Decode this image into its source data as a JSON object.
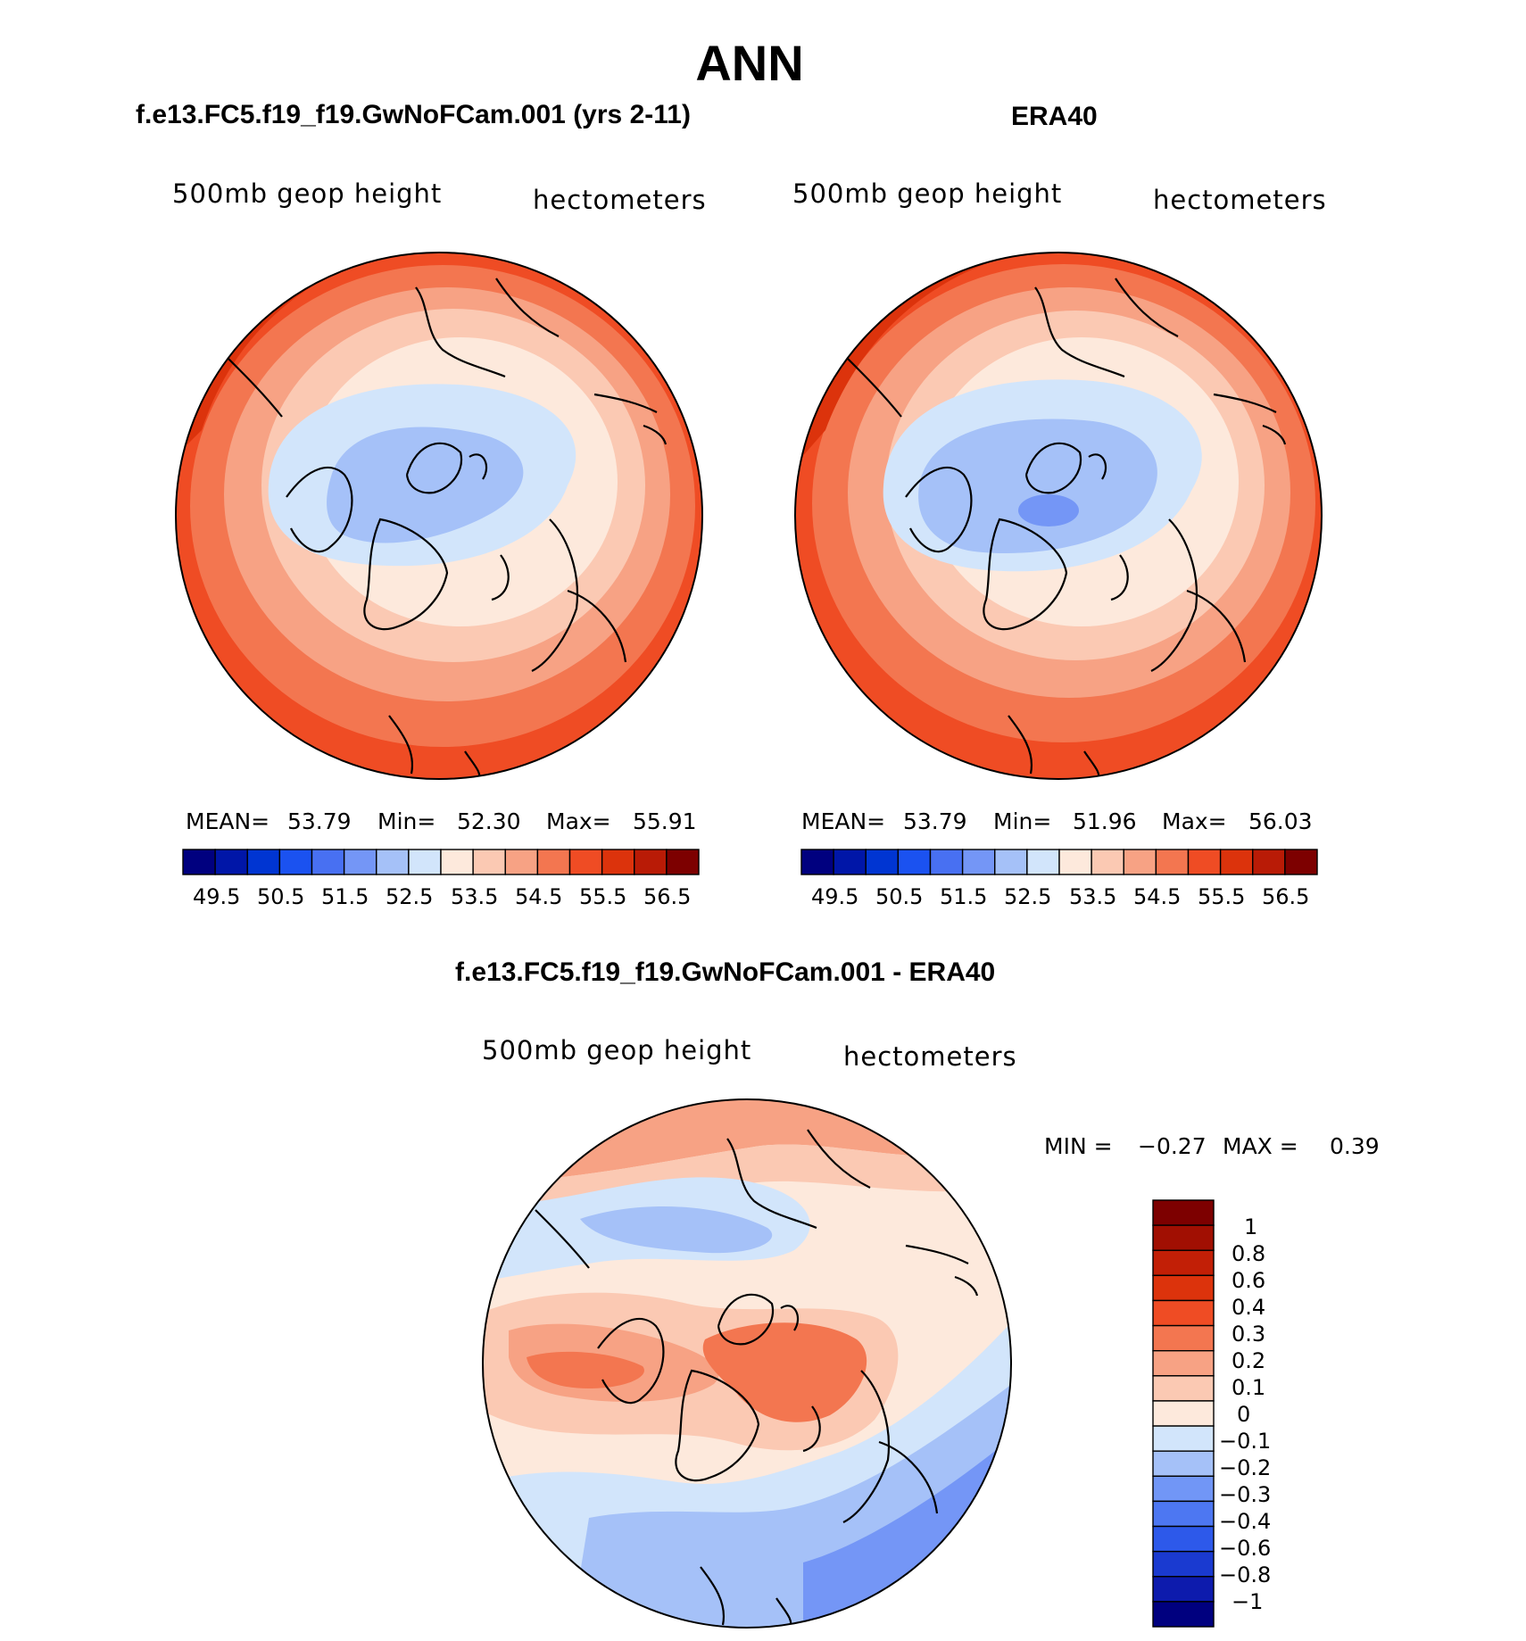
{
  "title": "ANN",
  "colors": {
    "scale16": [
      "#00007f",
      "#0016a8",
      "#0035d2",
      "#1b52f0",
      "#4870f2",
      "#7496f6",
      "#a5c1f8",
      "#d2e5fb",
      "#fde9dc",
      "#fbc9b3",
      "#f7a284",
      "#f37650",
      "#ef4c24",
      "#dc330c",
      "#b91b06",
      "#7d0000"
    ],
    "scale17": [
      "#00007f",
      "#0d1bad",
      "#1a3ad0",
      "#2d59ea",
      "#4d77f2",
      "#7196f6",
      "#a5c1f8",
      "#d2e5fb",
      "#fde9dc",
      "#fbc9b3",
      "#f7a284",
      "#f37650",
      "#ef4c24",
      "#dc330c",
      "#c21f06",
      "#a10f02",
      "#7d0000"
    ]
  },
  "chart_data": [
    {
      "type": "heatmap",
      "projection": "north-polar-stereographic",
      "title": "f.e13.FC5.f19_f19.GwNoFCam.001 (yrs 2-11)",
      "variable": "500mb geop height",
      "units": "hectometers",
      "stats": {
        "mean_label": "MEAN=",
        "mean": "53.79",
        "min_label": "Min=",
        "min": "52.30",
        "max_label": "Max=",
        "max": "55.91"
      },
      "colorbar_ticks": [
        "49.5",
        "50.5",
        "51.5",
        "52.5",
        "53.5",
        "54.5",
        "55.5",
        "56.5"
      ],
      "contour_levels": [
        49.5,
        50,
        50.5,
        51,
        51.5,
        52,
        52.5,
        53,
        53.5,
        54,
        54.5,
        55,
        55.5,
        56,
        56.5
      ],
      "field_range": [
        52.3,
        55.91
      ]
    },
    {
      "type": "heatmap",
      "projection": "north-polar-stereographic",
      "title": "ERA40",
      "variable": "500mb geop height",
      "units": "hectometers",
      "stats": {
        "mean_label": "MEAN=",
        "mean": "53.79",
        "min_label": "Min=",
        "min": "51.96",
        "max_label": "Max=",
        "max": "56.03"
      },
      "colorbar_ticks": [
        "49.5",
        "50.5",
        "51.5",
        "52.5",
        "53.5",
        "54.5",
        "55.5",
        "56.5"
      ],
      "contour_levels": [
        49.5,
        50,
        50.5,
        51,
        51.5,
        52,
        52.5,
        53,
        53.5,
        54,
        54.5,
        55,
        55.5,
        56,
        56.5
      ],
      "field_range": [
        51.96,
        56.03
      ]
    },
    {
      "type": "heatmap",
      "projection": "north-polar-stereographic",
      "title": "f.e13.FC5.f19_f19.GwNoFCam.001 - ERA40",
      "variable": "500mb geop height",
      "units": "hectometers",
      "stats": {
        "min_label": "MIN =",
        "min": "−0.27",
        "max_label": "MAX =",
        "max": "0.39"
      },
      "colorbar_ticks": [
        "1",
        "0.8",
        "0.6",
        "0.4",
        "0.3",
        "0.2",
        "0.1",
        "0",
        "−0.1",
        "−0.2",
        "−0.3",
        "−0.4",
        "−0.6",
        "−0.8",
        "−1"
      ],
      "contour_levels": [
        -1,
        -0.8,
        -0.6,
        -0.4,
        -0.3,
        -0.2,
        -0.1,
        0,
        0.1,
        0.2,
        0.3,
        0.4,
        0.6,
        0.8,
        1
      ],
      "field_range": [
        -0.27,
        0.39
      ]
    }
  ]
}
